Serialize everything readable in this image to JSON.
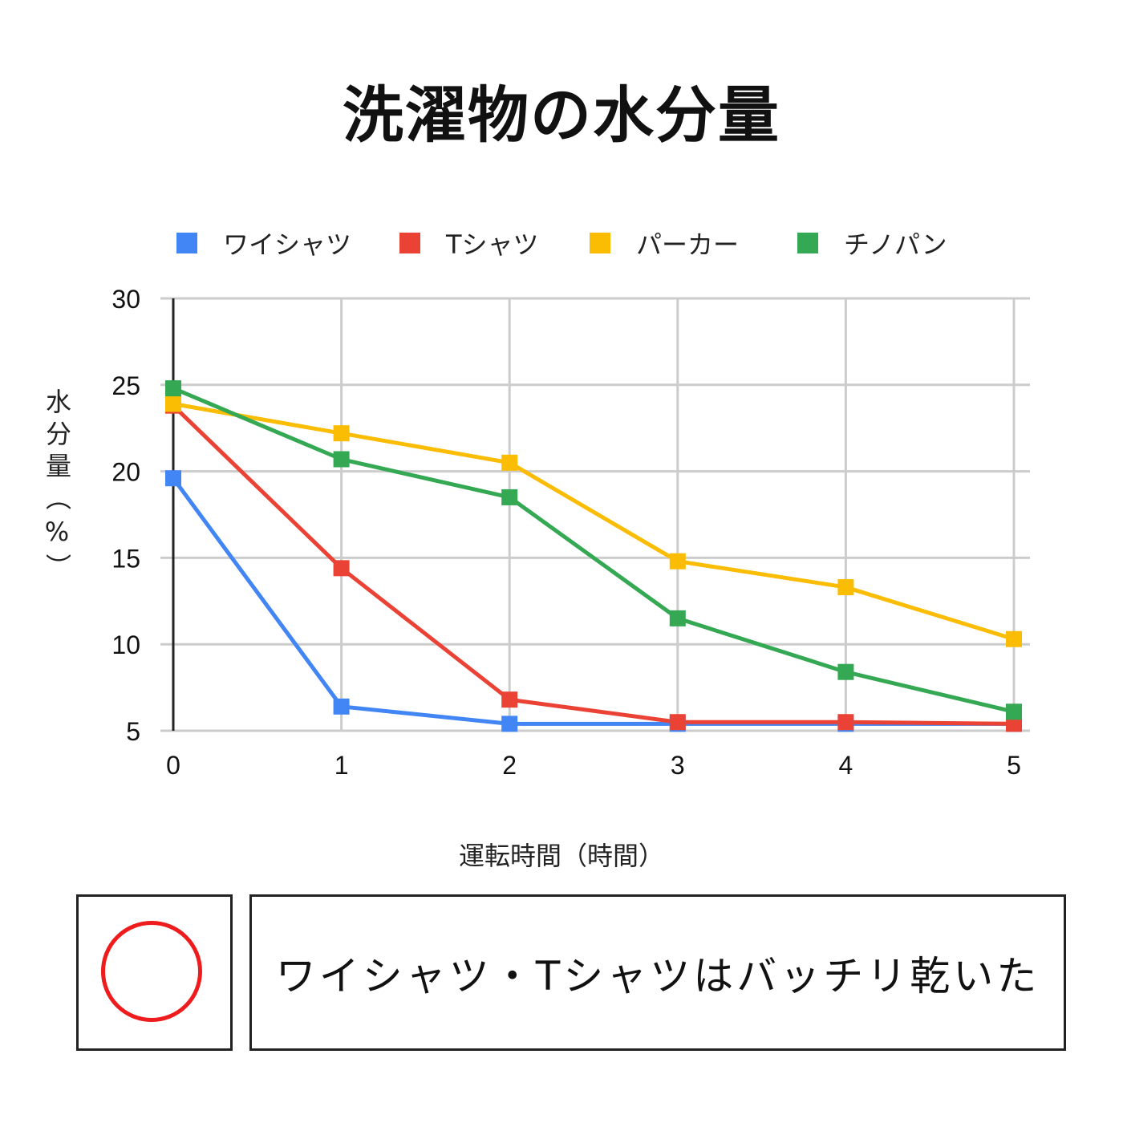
{
  "colors": {
    "shirt": "#4285f4",
    "tshirt": "#ea4335",
    "parka": "#fbbc04",
    "chino": "#34a853",
    "grid": "#cccccc",
    "axis": "#222222",
    "verdict_mark": "#ee1c1c"
  },
  "chart_data": {
    "type": "line",
    "title": "洗濯物の水分量",
    "xlabel": "運転時間（時間）",
    "ylabel": "水分量（%）",
    "x": [
      0,
      1,
      2,
      3,
      4,
      5
    ],
    "x_tick_labels": [
      "0",
      "1",
      "2",
      "3",
      "4",
      "5"
    ],
    "y_tick_labels": [
      "30",
      "25",
      "20",
      "15",
      "10",
      "5"
    ],
    "y_ticks": [
      30,
      25,
      20,
      15,
      10,
      5
    ],
    "xlim": [
      0,
      5
    ],
    "ylim": [
      5,
      30
    ],
    "grid": true,
    "legend_position": "top",
    "marker": "square",
    "series": [
      {
        "name": "ワイシャツ",
        "color": "#4285f4",
        "values": [
          19.6,
          6.4,
          5.4,
          5.4,
          5.4,
          5.4
        ]
      },
      {
        "name": "Tシャツ",
        "color": "#ea4335",
        "values": [
          23.8,
          14.4,
          6.8,
          5.5,
          5.5,
          5.4
        ]
      },
      {
        "name": "パーカー",
        "color": "#fbbc04",
        "values": [
          23.9,
          22.2,
          20.5,
          14.8,
          13.3,
          10.3
        ]
      },
      {
        "name": "チノパン",
        "color": "#34a853",
        "values": [
          24.8,
          20.7,
          18.5,
          11.5,
          8.4,
          6.1
        ]
      }
    ]
  },
  "verdict": {
    "mark": "circle"
  },
  "comment": {
    "text": "ワイシャツ・Tシャツはバッチリ乾いた"
  }
}
